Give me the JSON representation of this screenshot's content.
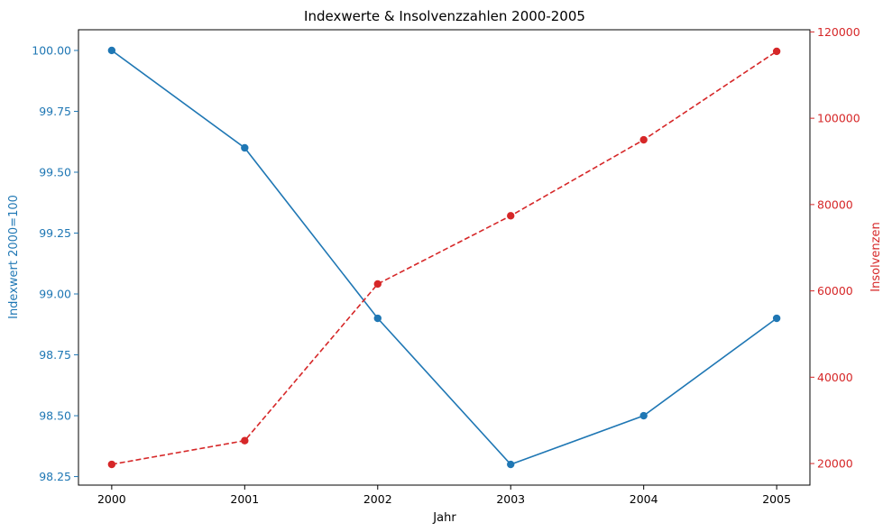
{
  "chart_data": {
    "type": "line",
    "title": "Indexwerte & Insolvenzzahlen 2000-2005",
    "xlabel": "Jahr",
    "x": [
      2000,
      2001,
      2002,
      2003,
      2004,
      2005
    ],
    "x_ticks": [
      "2000",
      "2001",
      "2002",
      "2003",
      "2004",
      "2005"
    ],
    "left_axis": {
      "label": "Indexwert 2000=100",
      "color": "#1f77b4",
      "ylim": [
        98.215,
        100.085
      ],
      "ticks": [
        "98.25",
        "98.50",
        "98.75",
        "99.00",
        "99.25",
        "99.50",
        "99.75",
        "100.00"
      ],
      "tick_values": [
        98.25,
        98.5,
        98.75,
        99.0,
        99.25,
        99.5,
        99.75,
        100.0
      ]
    },
    "right_axis": {
      "label": "Insolvenzen",
      "color": "#d62728",
      "ylim": [
        15000,
        120500
      ],
      "ticks": [
        "20000",
        "40000",
        "60000",
        "80000",
        "100000",
        "120000"
      ],
      "tick_values": [
        20000,
        40000,
        60000,
        80000,
        100000,
        120000
      ]
    },
    "series": [
      {
        "axis": "left",
        "color": "#1f77b4",
        "linestyle": "solid",
        "marker": "circle",
        "values": [
          100.0,
          99.6,
          98.9,
          98.3,
          98.5,
          98.9
        ]
      },
      {
        "axis": "right",
        "color": "#d62728",
        "linestyle": "dashed",
        "marker": "circle",
        "values": [
          19800,
          25300,
          61600,
          77400,
          95000,
          115500
        ]
      }
    ],
    "grid": false
  }
}
